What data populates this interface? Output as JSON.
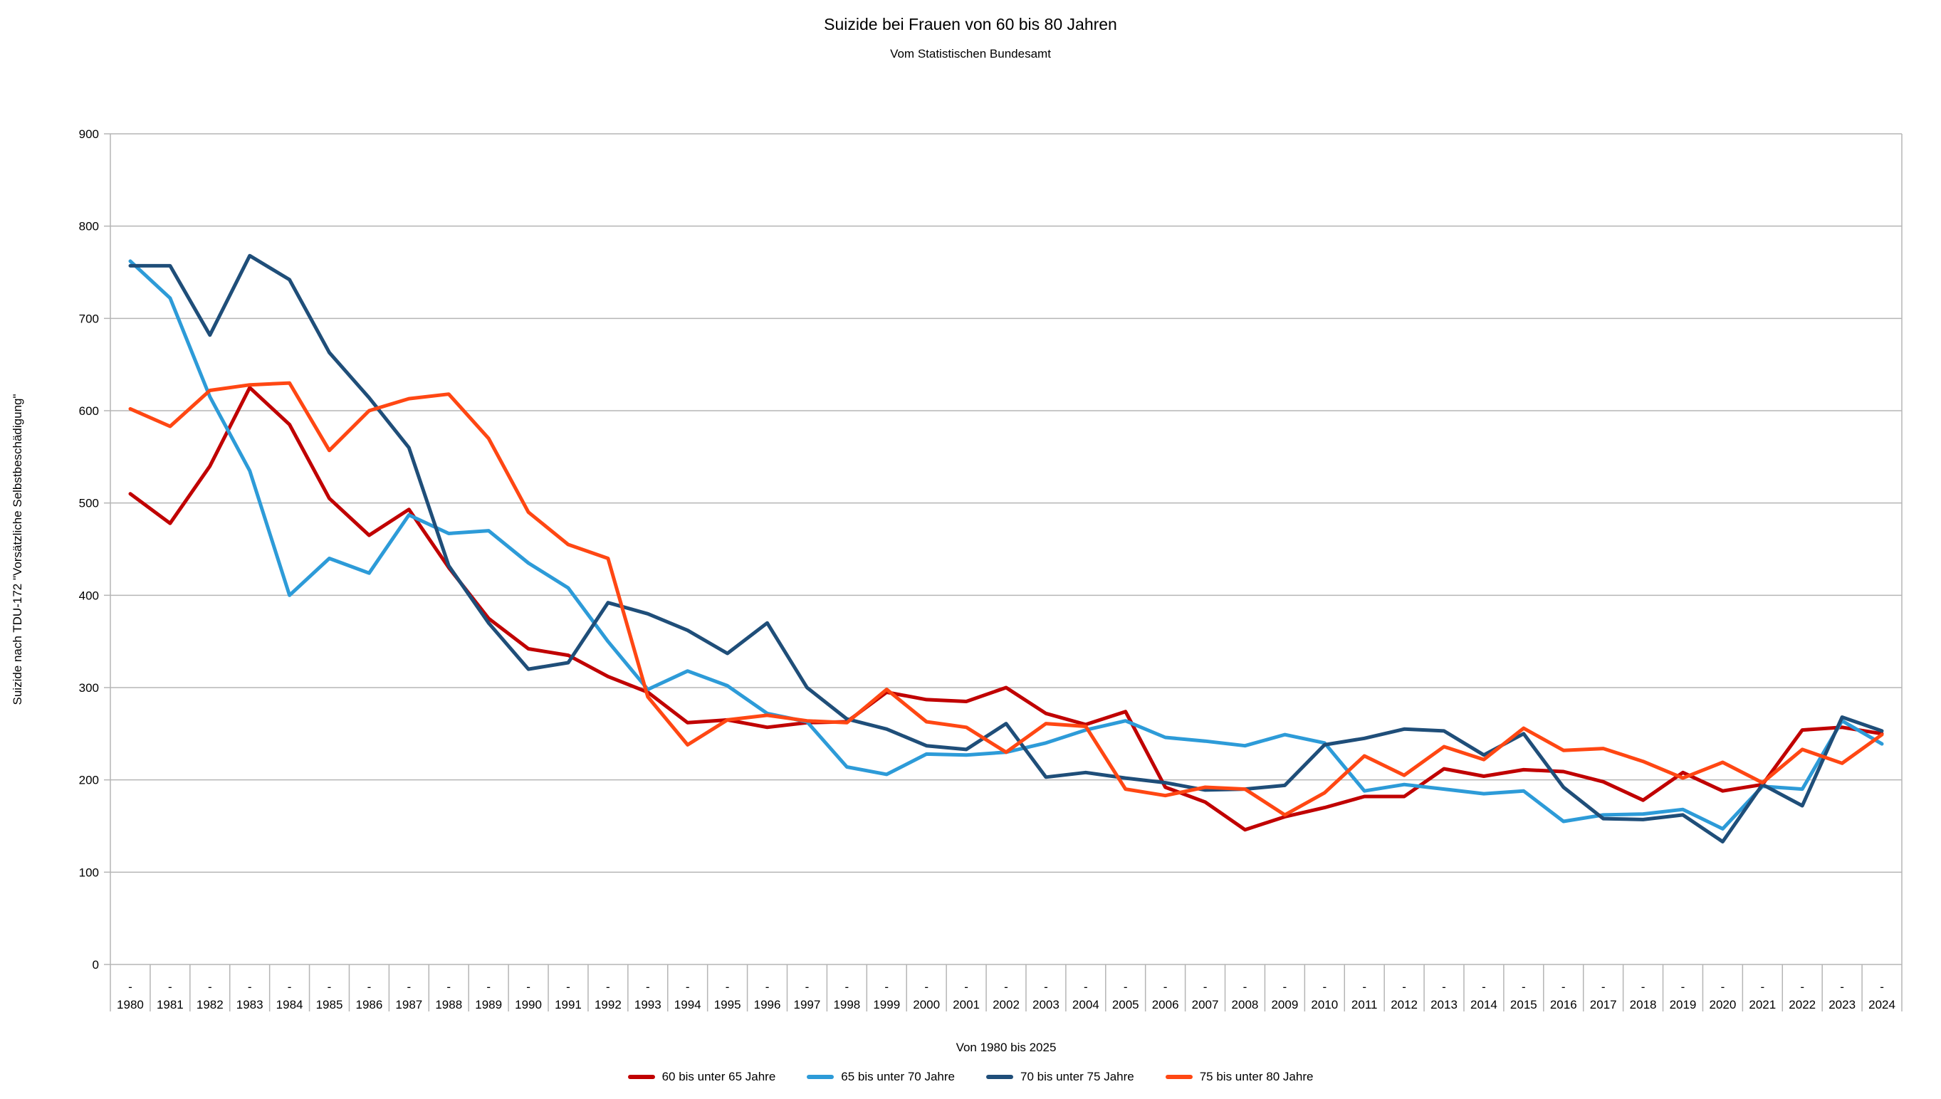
{
  "chart": {
    "title": "Suizide bei Frauen von 60 bis 80 Jahren",
    "subtitle": "Vom Statistischen Bundesamt",
    "x_axis_label": "Von 1980 bis 2025",
    "y_axis_label": "Suizide nach TDU-172 \"Vorsätzliche Selbstbeschädigung\"",
    "x_tick_dash": "-"
  },
  "chart_data": {
    "type": "line",
    "title": "Suizide bei Frauen von 60 bis 80 Jahren",
    "subtitle": "Vom Statistischen Bundesamt",
    "xlabel": "Von 1980 bis 2025",
    "ylabel": "Suizide nach TDU-172 \"Vorsätzliche Selbstbeschädigung\"",
    "ylim": [
      0,
      900
    ],
    "yticks": [
      0,
      100,
      200,
      300,
      400,
      500,
      600,
      700,
      800,
      900
    ],
    "grid": "horizontal",
    "legend_position": "bottom",
    "x": [
      1980,
      1981,
      1982,
      1983,
      1984,
      1985,
      1986,
      1987,
      1988,
      1989,
      1990,
      1991,
      1992,
      1993,
      1994,
      1995,
      1996,
      1997,
      1998,
      1999,
      2000,
      2001,
      2002,
      2003,
      2004,
      2005,
      2006,
      2007,
      2008,
      2009,
      2010,
      2011,
      2012,
      2013,
      2014,
      2015,
      2016,
      2017,
      2018,
      2019,
      2020,
      2021,
      2022,
      2023,
      2024
    ],
    "series": [
      {
        "name": "60 bis unter 65 Jahre",
        "color": "#c00000",
        "values": [
          510,
          478,
          540,
          625,
          585,
          505,
          465,
          493,
          430,
          375,
          342,
          335,
          312,
          295,
          262,
          265,
          257,
          262,
          263,
          295,
          287,
          285,
          300,
          272,
          260,
          274,
          192,
          176,
          146,
          160,
          170,
          182,
          182,
          212,
          204,
          211,
          209,
          198,
          178,
          208,
          188,
          195,
          254,
          257,
          250
        ]
      },
      {
        "name": "65 bis unter 70 Jahre",
        "color": "#2d9bd8",
        "values": [
          762,
          722,
          615,
          535,
          400,
          440,
          424,
          487,
          467,
          470,
          435,
          408,
          350,
          298,
          318,
          302,
          272,
          263,
          214,
          206,
          228,
          227,
          230,
          240,
          254,
          264,
          246,
          242,
          237,
          249,
          240,
          188,
          195,
          190,
          185,
          188,
          155,
          162,
          163,
          168,
          147,
          193,
          190,
          264,
          239
        ]
      },
      {
        "name": "70 bis unter 75 Jahre",
        "color": "#1f4e79",
        "values": [
          757,
          757,
          682,
          768,
          742,
          663,
          614,
          560,
          432,
          370,
          320,
          327,
          392,
          380,
          362,
          337,
          370,
          300,
          266,
          255,
          237,
          233,
          261,
          203,
          208,
          202,
          197,
          189,
          190,
          194,
          238,
          245,
          255,
          253,
          227,
          250,
          192,
          158,
          157,
          162,
          133,
          195,
          172,
          268,
          253
        ]
      },
      {
        "name": "75 bis unter 80 Jahre",
        "color": "#ff4713",
        "values": [
          602,
          583,
          622,
          628,
          630,
          557,
          600,
          613,
          618,
          570,
          490,
          455,
          440,
          290,
          238,
          265,
          270,
          264,
          262,
          298,
          263,
          257,
          230,
          261,
          258,
          190,
          183,
          192,
          190,
          162,
          186,
          226,
          205,
          236,
          222,
          256,
          232,
          234,
          220,
          202,
          219,
          197,
          233,
          218,
          249
        ]
      }
    ]
  },
  "style": {
    "grid_color": "#b5b5b5",
    "axis_color": "#b5b5b5",
    "text_color": "#000000"
  }
}
